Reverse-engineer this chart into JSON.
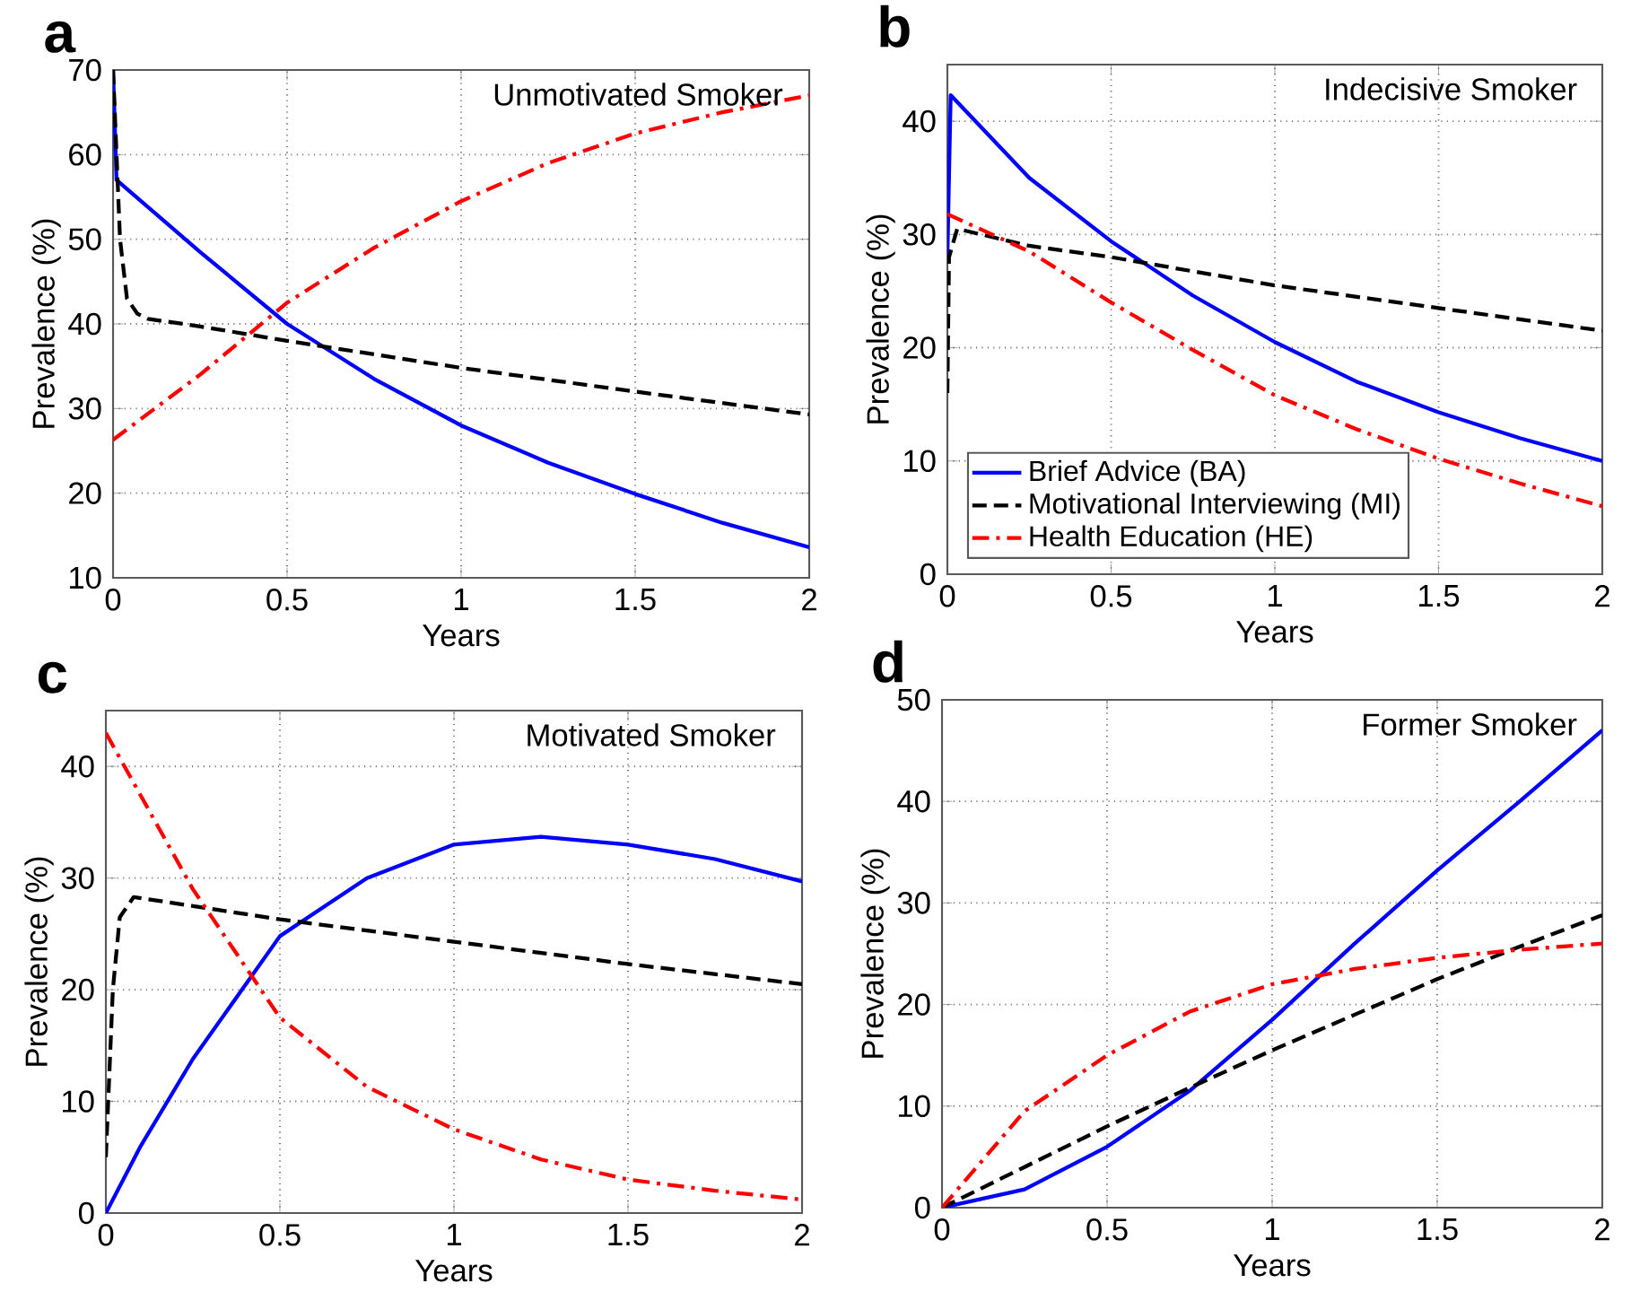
{
  "chart_data": [
    {
      "type": "line",
      "title": "a",
      "annotations": [
        "Unmotivated Smoker"
      ],
      "xlabel": "Years",
      "ylabel": "Prevalence (%)",
      "xlim": [
        0,
        2
      ],
      "ylim": [
        10,
        70
      ],
      "xticks": [
        0,
        0.5,
        1,
        1.5,
        2
      ],
      "yticks": [
        10,
        20,
        30,
        40,
        50,
        60,
        70
      ],
      "grid": true,
      "legend": false,
      "series": [
        {
          "color": "#0000ff",
          "line_style": "solid",
          "x": [
            0,
            0.01,
            0.25,
            0.5,
            0.75,
            1,
            1.25,
            1.5,
            1.75,
            2
          ],
          "values": [
            70,
            57,
            48.5,
            40,
            33.5,
            28,
            23.6,
            19.9,
            16.5,
            13.6
          ]
        },
        {
          "color": "#000000",
          "line_style": "dashed",
          "x": [
            0,
            0.01,
            0.02,
            0.04,
            0.07,
            0.1,
            0.25,
            0.5,
            1,
            1.5,
            2
          ],
          "values": [
            70,
            60,
            50,
            43,
            41.2,
            40.6,
            39.7,
            38,
            34.8,
            32,
            29.3
          ]
        },
        {
          "color": "#ff0000",
          "line_style": "dashdot",
          "x": [
            0,
            0.25,
            0.5,
            0.75,
            1,
            1.25,
            1.5,
            1.75,
            2
          ],
          "values": [
            26.3,
            34,
            42.5,
            49,
            54.5,
            59,
            62.5,
            65,
            67
          ]
        }
      ]
    },
    {
      "type": "line",
      "title": "b",
      "annotations": [
        "Indecisive Smoker"
      ],
      "xlabel": "Years",
      "ylabel": "Prevalence (%)",
      "xlim": [
        0,
        2
      ],
      "ylim": [
        0,
        45
      ],
      "xticks": [
        0,
        0.5,
        1,
        1.5,
        2
      ],
      "yticks": [
        0,
        10,
        20,
        30,
        40
      ],
      "grid": true,
      "legend": "bottom left",
      "series": [
        {
          "name": "Brief Advice (BA)",
          "color": "#0000ff",
          "line_style": "solid",
          "x": [
            0,
            0.01,
            0.25,
            0.5,
            0.75,
            1,
            1.25,
            1.5,
            1.75,
            2
          ],
          "values": [
            28,
            42.3,
            35,
            29.4,
            24.6,
            20.5,
            17,
            14.3,
            12,
            10
          ]
        },
        {
          "name": "Motivational Interviewing (MI)",
          "color": "#000000",
          "line_style": "dashed",
          "x": [
            0,
            0.005,
            0.03,
            0.25,
            0.5,
            1,
            1.5,
            2
          ],
          "values": [
            16,
            28,
            30.5,
            29,
            28,
            25.5,
            23.5,
            21.5
          ]
        },
        {
          "name": "Health Education (HE)",
          "color": "#ff0000",
          "line_style": "dashdot",
          "x": [
            0,
            0.25,
            0.5,
            0.75,
            1,
            1.25,
            1.5,
            1.75,
            2
          ],
          "values": [
            31.8,
            28.5,
            24,
            19.8,
            15.8,
            12.8,
            10.2,
            8,
            6
          ]
        }
      ]
    },
    {
      "type": "line",
      "title": "c",
      "annotations": [
        "Motivated Smoker"
      ],
      "xlabel": "Years",
      "ylabel": "Prevalence (%)",
      "xlim": [
        0,
        2
      ],
      "ylim": [
        0,
        45
      ],
      "xticks": [
        0,
        0.5,
        1,
        1.5,
        2
      ],
      "yticks": [
        0,
        10,
        20,
        30,
        40
      ],
      "grid": true,
      "legend": false,
      "series": [
        {
          "color": "#0000ff",
          "line_style": "solid",
          "x": [
            0,
            0.1,
            0.25,
            0.5,
            0.75,
            1,
            1.25,
            1.5,
            1.75,
            2
          ],
          "values": [
            0,
            6,
            13.8,
            24.8,
            30,
            33,
            33.7,
            33,
            31.7,
            29.7
          ]
        },
        {
          "color": "#000000",
          "line_style": "dashed",
          "x": [
            0,
            0.02,
            0.04,
            0.08,
            0.25,
            0.5,
            1,
            1.5,
            2
          ],
          "values": [
            5,
            20,
            26.5,
            28.3,
            27.5,
            26.3,
            24.3,
            22.3,
            20.5
          ]
        },
        {
          "color": "#ff0000",
          "line_style": "dashdot",
          "x": [
            0,
            0.25,
            0.5,
            0.75,
            1,
            1.25,
            1.5,
            1.75,
            2
          ],
          "values": [
            43,
            29,
            17.5,
            11.3,
            7.5,
            4.8,
            3,
            2,
            1.2
          ]
        }
      ]
    },
    {
      "type": "line",
      "title": "d",
      "annotations": [
        "Former Smoker"
      ],
      "xlabel": "Years",
      "ylabel": "Prevalence (%)",
      "xlim": [
        0,
        2
      ],
      "ylim": [
        0,
        50
      ],
      "xticks": [
        0,
        0.5,
        1,
        1.5,
        2
      ],
      "yticks": [
        0,
        10,
        20,
        30,
        40,
        50
      ],
      "grid": true,
      "legend": false,
      "series": [
        {
          "color": "#0000ff",
          "line_style": "solid",
          "x": [
            0,
            0.25,
            0.5,
            0.75,
            1,
            1.25,
            1.5,
            1.75,
            2
          ],
          "values": [
            0,
            1.8,
            6,
            11.5,
            18.5,
            26,
            33.2,
            40,
            47
          ]
        },
        {
          "color": "#000000",
          "line_style": "dashed",
          "x": [
            0,
            0.25,
            0.5,
            0.75,
            1,
            1.25,
            1.5,
            1.75,
            2
          ],
          "values": [
            0,
            4,
            8,
            11.8,
            15.5,
            19,
            22.5,
            25.7,
            28.8
          ]
        },
        {
          "color": "#ff0000",
          "line_style": "dashdot",
          "x": [
            0,
            0.25,
            0.5,
            0.75,
            1,
            1.25,
            1.5,
            1.75,
            2
          ],
          "values": [
            0,
            9.5,
            15,
            19.3,
            22,
            23.5,
            24.6,
            25.4,
            26
          ]
        }
      ]
    }
  ]
}
